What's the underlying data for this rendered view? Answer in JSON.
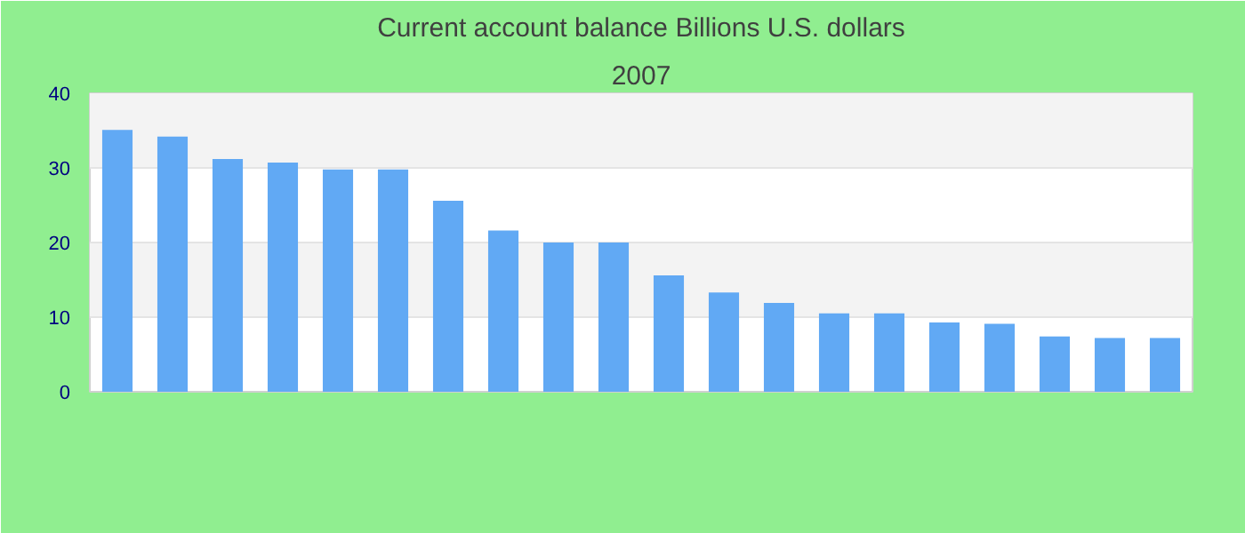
{
  "chart_data": {
    "type": "bar",
    "title": "Current account balance Billions U.S. dollars",
    "subtitle": "2007",
    "categories": [
      null,
      null,
      null,
      null,
      null,
      null,
      null,
      null,
      null,
      null,
      null,
      null,
      null,
      null,
      null,
      null,
      null,
      null,
      null,
      null
    ],
    "values": [
      35.1,
      34.2,
      31.2,
      30.7,
      29.8,
      29.8,
      25.6,
      21.6,
      20.0,
      20.0,
      15.6,
      13.3,
      11.9,
      10.5,
      10.5,
      9.3,
      9.1,
      7.4,
      7.2,
      7.2
    ],
    "color": "#61a9f4",
    "ylim": [
      0,
      40
    ],
    "yticks": [
      0,
      10,
      20,
      30,
      40
    ],
    "grid": "y"
  }
}
